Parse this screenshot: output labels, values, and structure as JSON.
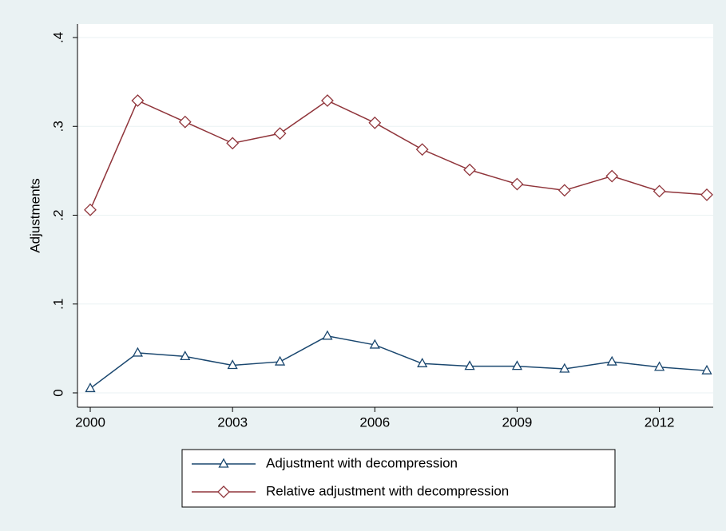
{
  "chart_data": {
    "type": "line",
    "y_label": "Adjustments",
    "x": [
      2000,
      2001,
      2002,
      2003,
      2004,
      2005,
      2006,
      2007,
      2008,
      2009,
      2010,
      2011,
      2012,
      2013
    ],
    "xlim": [
      2000,
      2013
    ],
    "xticks": [
      2000,
      2003,
      2006,
      2009,
      2012
    ],
    "ylim": [
      0,
      0.4
    ],
    "yticks": [
      0,
      {
        "value": 0.1,
        "label": ".1"
      },
      {
        "value": 0.2,
        "label": ".2"
      },
      {
        "value": 0.3,
        "label": ".3"
      },
      {
        "value": 0.4,
        "label": ".4"
      }
    ],
    "grid": true,
    "series": [
      {
        "name": "Adjustment with decompression",
        "color": "#1a476f",
        "marker": "triangle",
        "values": [
          0.005,
          0.045,
          0.041,
          0.031,
          0.035,
          0.064,
          0.054,
          0.033,
          0.03,
          0.03,
          0.027,
          0.035,
          0.029,
          0.025
        ]
      },
      {
        "name": "Relative adjustment with decompression",
        "color": "#90353b",
        "marker": "diamond",
        "values": [
          0.206,
          0.329,
          0.305,
          0.281,
          0.292,
          0.329,
          0.304,
          0.274,
          0.251,
          0.235,
          0.228,
          0.244,
          0.227,
          0.223
        ]
      }
    ]
  }
}
